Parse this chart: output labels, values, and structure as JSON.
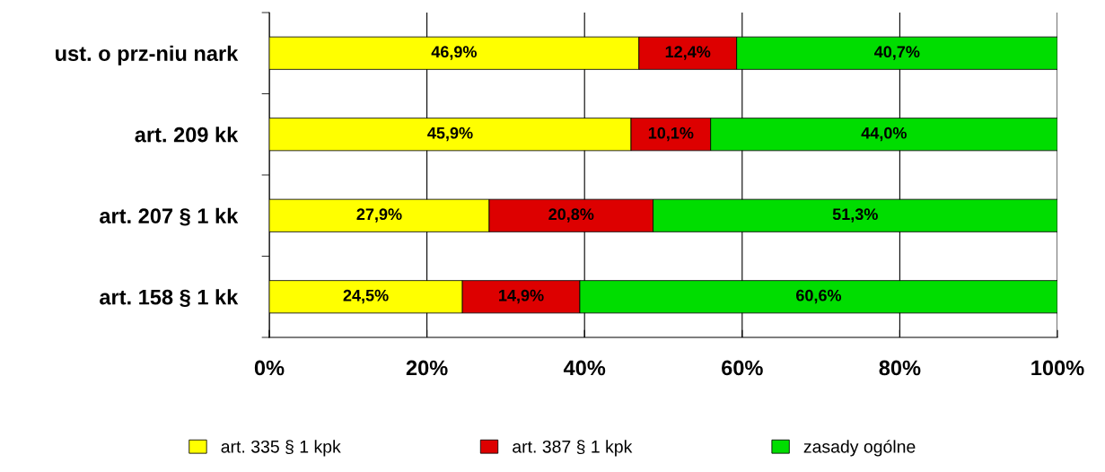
{
  "chart_data": {
    "type": "bar",
    "orientation": "horizontal",
    "stacked": true,
    "categories": [
      "ust. o prz-niu nark",
      "art. 209 kk",
      "art. 207 § 1 kk",
      "art. 158 § 1 kk"
    ],
    "series": [
      {
        "name": "art. 335 § 1 kpk",
        "color": "#ffff00",
        "values": [
          46.9,
          45.9,
          27.9,
          24.5
        ],
        "value_labels": [
          "46,9%",
          "45,9%",
          "27,9%",
          "24,5%"
        ]
      },
      {
        "name": "art. 387 § 1 kpk",
        "color": "#dd0000",
        "values": [
          12.4,
          10.1,
          20.8,
          14.9
        ],
        "value_labels": [
          "12,4%",
          "10,1%",
          "20,8%",
          "14,9%"
        ]
      },
      {
        "name": "zasady ogólne",
        "color": "#00dd00",
        "values": [
          40.7,
          44.0,
          51.3,
          60.6
        ],
        "value_labels": [
          "40,7%",
          "44,0%",
          "51,3%",
          "60,6%"
        ]
      }
    ],
    "xlim": [
      0,
      100
    ],
    "xticks": [
      {
        "value": 0,
        "label": "0%"
      },
      {
        "value": 20,
        "label": "20%"
      },
      {
        "value": 40,
        "label": "40%"
      },
      {
        "value": 60,
        "label": "60%"
      },
      {
        "value": 80,
        "label": "80%"
      },
      {
        "value": 100,
        "label": "100%"
      }
    ],
    "grid": "x",
    "legend": "bottom"
  }
}
